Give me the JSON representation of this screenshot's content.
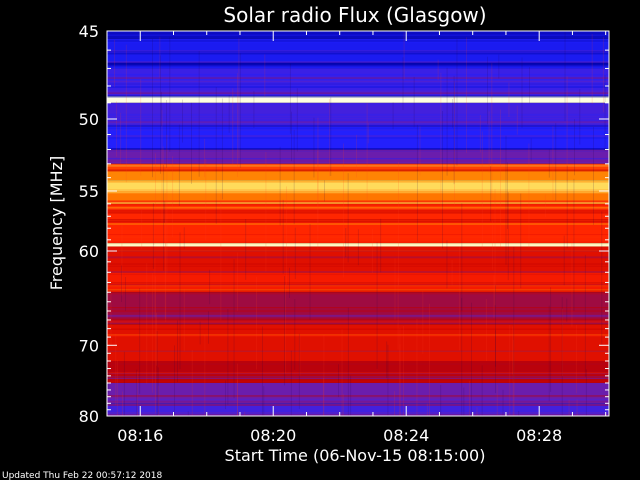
{
  "chart_data": {
    "type": "heatmap",
    "title": "Solar radio Flux (Glasgow)",
    "xlabel": "Start Time (06-Nov-15 08:15:00)",
    "ylabel": "Frequency [MHz]",
    "x_ticks": [
      "08:16",
      "08:20",
      "08:24",
      "08:28"
    ],
    "x_tick_minutes": [
      16,
      20,
      24,
      28
    ],
    "xlim_minutes": [
      15.0,
      30.1
    ],
    "y_ticks": [
      45,
      50,
      55,
      60,
      70,
      80
    ],
    "ylim": [
      45,
      80
    ],
    "y_scale": "reciprocal",
    "colormap": [
      "#0000a0",
      "#2020ff",
      "#6020c0",
      "#c00000",
      "#ff2000",
      "#ff8000",
      "#ffe060",
      "#ffffe0"
    ],
    "bands": [
      {
        "f_lo": 45.0,
        "f_hi": 45.4,
        "level": 0.05
      },
      {
        "f_lo": 45.4,
        "f_hi": 47.0,
        "level": 0.12
      },
      {
        "f_lo": 47.0,
        "f_hi": 48.6,
        "level": 0.2
      },
      {
        "f_lo": 48.6,
        "f_hi": 49.0,
        "level": 1.0
      },
      {
        "f_lo": 49.0,
        "f_hi": 50.5,
        "level": 0.22
      },
      {
        "f_lo": 50.5,
        "f_hi": 52.0,
        "level": 0.15
      },
      {
        "f_lo": 52.0,
        "f_hi": 53.0,
        "level": 0.3
      },
      {
        "f_lo": 53.0,
        "f_hi": 53.5,
        "level": 0.62
      },
      {
        "f_lo": 53.5,
        "f_hi": 54.2,
        "level": 0.72
      },
      {
        "f_lo": 54.2,
        "f_hi": 55.0,
        "level": 0.85
      },
      {
        "f_lo": 55.0,
        "f_hi": 56.0,
        "level": 0.7
      },
      {
        "f_lo": 56.0,
        "f_hi": 59.3,
        "level": 0.58
      },
      {
        "f_lo": 59.3,
        "f_hi": 59.6,
        "level": 0.95
      },
      {
        "f_lo": 59.6,
        "f_hi": 62.0,
        "level": 0.5
      },
      {
        "f_lo": 62.0,
        "f_hi": 64.0,
        "level": 0.55
      },
      {
        "f_lo": 64.0,
        "f_hi": 67.5,
        "level": 0.38
      },
      {
        "f_lo": 67.5,
        "f_hi": 72.0,
        "level": 0.5
      },
      {
        "f_lo": 72.0,
        "f_hi": 75.0,
        "level": 0.42
      },
      {
        "f_lo": 75.0,
        "f_hi": 78.0,
        "level": 0.3
      },
      {
        "f_lo": 78.0,
        "f_hi": 80.0,
        "level": 0.22
      }
    ]
  },
  "footer": {
    "updated": "Updated Thu Feb 22 00:57:12 2018"
  }
}
